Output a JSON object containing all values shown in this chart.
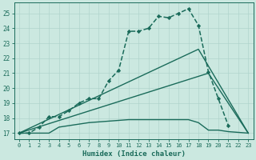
{
  "xlabel": "Humidex (Indice chaleur)",
  "background_color": "#cbe8e0",
  "grid_color": "#b0d4cc",
  "line_color": "#1a6b5a",
  "xlim": [
    -0.5,
    23.5
  ],
  "ylim": [
    16.6,
    25.7
  ],
  "yticks": [
    17,
    18,
    19,
    20,
    21,
    22,
    23,
    24,
    25
  ],
  "xticks": [
    0,
    1,
    2,
    3,
    4,
    5,
    6,
    7,
    8,
    9,
    10,
    11,
    12,
    13,
    14,
    15,
    16,
    17,
    18,
    19,
    20,
    21,
    22,
    23
  ],
  "series": [
    {
      "x": [
        0,
        1,
        2,
        3,
        4,
        5,
        6,
        7,
        8,
        9,
        10,
        11,
        12,
        13,
        14,
        15,
        16,
        17,
        18,
        19,
        20,
        21,
        22,
        23
      ],
      "y": [
        17.0,
        17.0,
        17.4,
        18.1,
        18.1,
        18.5,
        19.0,
        19.3,
        19.3,
        20.5,
        21.2,
        23.8,
        23.8,
        24.0,
        24.8,
        24.7,
        25.0,
        25.3,
        24.2,
        21.1,
        19.3,
        17.5,
        null,
        null
      ],
      "marker": "D",
      "markersize": 2.2,
      "linewidth": 1.1,
      "linestyle": "--"
    },
    {
      "x": [
        0,
        18,
        23
      ],
      "y": [
        17.0,
        22.6,
        17.0
      ],
      "marker": null,
      "markersize": 0,
      "linewidth": 1.0,
      "linestyle": "-"
    },
    {
      "x": [
        0,
        19,
        23
      ],
      "y": [
        17.0,
        21.0,
        17.0
      ],
      "marker": null,
      "markersize": 0,
      "linewidth": 1.0,
      "linestyle": "-"
    },
    {
      "x": [
        0,
        1,
        2,
        3,
        4,
        5,
        6,
        7,
        8,
        9,
        10,
        11,
        12,
        13,
        14,
        15,
        16,
        17,
        18,
        19,
        20,
        21,
        22,
        23
      ],
      "y": [
        17.0,
        17.0,
        17.0,
        17.0,
        17.4,
        17.5,
        17.6,
        17.7,
        17.75,
        17.8,
        17.85,
        17.9,
        17.9,
        17.9,
        17.9,
        17.9,
        17.9,
        17.9,
        17.7,
        17.2,
        17.2,
        17.1,
        17.05,
        17.0
      ],
      "marker": null,
      "markersize": 0,
      "linewidth": 1.0,
      "linestyle": "-"
    }
  ]
}
